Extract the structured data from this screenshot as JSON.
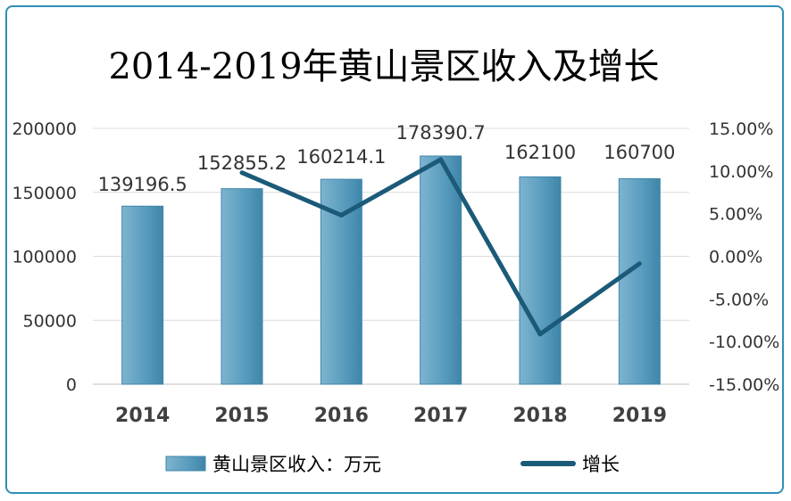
{
  "chart_data": {
    "type": "bar",
    "title": "2014-2019年黄山景区收入及增长",
    "categories": [
      "2014",
      "2015",
      "2016",
      "2017",
      "2018",
      "2019"
    ],
    "series": [
      {
        "name": "黄山景区收入：万元",
        "type": "bar",
        "axis": "left",
        "values": [
          139196.5,
          152855.2,
          160214.1,
          178390.7,
          162100,
          160700
        ],
        "labels": [
          "139196.5",
          "152855.2",
          "160214.1",
          "178390.7",
          "162100",
          "160700"
        ],
        "color": "#5d9fc0"
      },
      {
        "name": "增长",
        "type": "line",
        "axis": "right",
        "x": [
          "2015",
          "2016",
          "2017",
          "2018",
          "2019"
        ],
        "values": [
          9.81,
          4.81,
          11.35,
          -9.13,
          -0.86
        ],
        "color": "#1b5a78"
      }
    ],
    "y_left": {
      "ylim": [
        0,
        200000
      ],
      "ticks": [
        "0",
        "50000",
        "100000",
        "150000",
        "200000"
      ]
    },
    "y_right": {
      "ylim": [
        -15,
        15
      ],
      "ticks": [
        "-15.00%",
        "-10.00%",
        "-5.00%",
        "0.00%",
        "5.00%",
        "10.00%",
        "15.00%"
      ]
    },
    "grid": true,
    "legend": "bottom"
  }
}
